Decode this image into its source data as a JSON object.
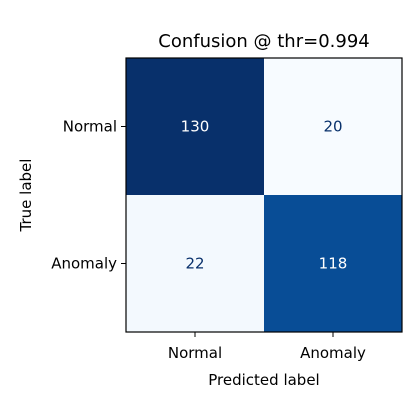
{
  "chart_data": {
    "type": "heatmap",
    "title": "Confusion @ thr=0.994",
    "xlabel": "Predicted label",
    "ylabel": "True label",
    "x_categories": [
      "Normal",
      "Anomaly"
    ],
    "y_categories": [
      "Normal",
      "Anomaly"
    ],
    "values": [
      [
        130,
        20
      ],
      [
        22,
        118
      ]
    ],
    "colormap": "Blues",
    "colorbar": false,
    "grid": false
  }
}
